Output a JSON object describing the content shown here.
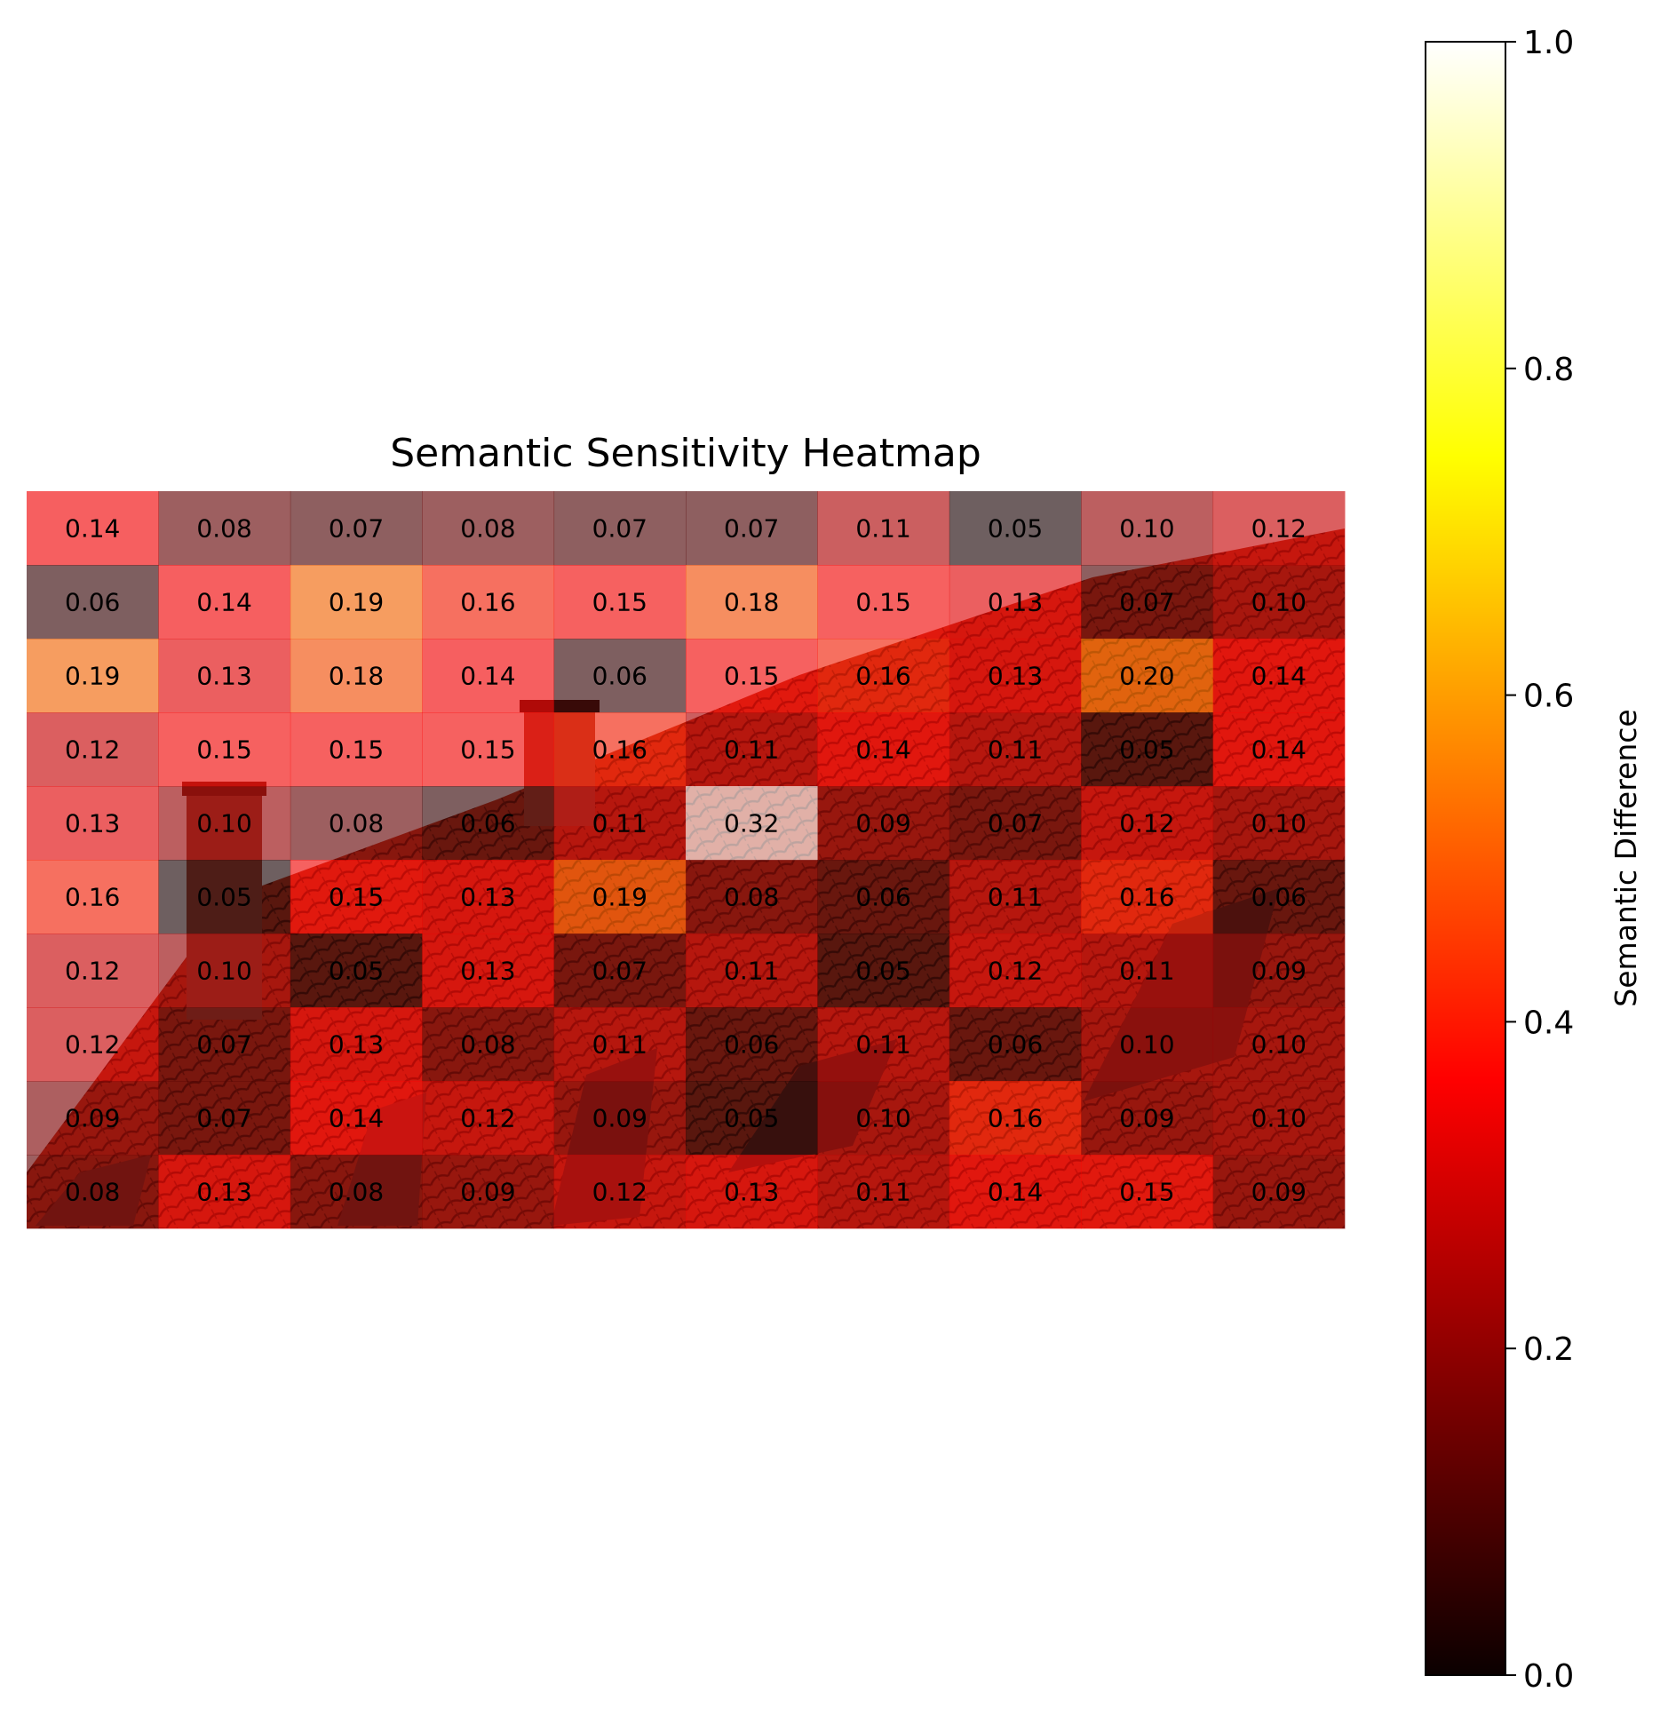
{
  "chart_data": {
    "type": "heatmap",
    "title": "Semantic Sensitivity Heatmap",
    "rows": 10,
    "cols": 10,
    "values": [
      [
        0.14,
        0.08,
        0.07,
        0.08,
        0.07,
        0.07,
        0.11,
        0.05,
        0.1,
        0.12
      ],
      [
        0.06,
        0.14,
        0.19,
        0.16,
        0.15,
        0.18,
        0.15,
        0.13,
        0.07,
        0.1
      ],
      [
        0.19,
        0.13,
        0.18,
        0.14,
        0.06,
        0.15,
        0.16,
        0.13,
        0.2,
        0.14
      ],
      [
        0.12,
        0.15,
        0.15,
        0.15,
        0.16,
        0.11,
        0.14,
        0.11,
        0.05,
        0.14
      ],
      [
        0.13,
        0.1,
        0.08,
        0.06,
        0.11,
        0.32,
        0.09,
        0.07,
        0.12,
        0.1
      ],
      [
        0.16,
        0.05,
        0.15,
        0.13,
        0.19,
        0.08,
        0.06,
        0.11,
        0.16,
        0.06
      ],
      [
        0.12,
        0.1,
        0.05,
        0.13,
        0.07,
        0.11,
        0.05,
        0.12,
        0.11,
        0.09
      ],
      [
        0.12,
        0.07,
        0.13,
        0.08,
        0.11,
        0.06,
        0.11,
        0.06,
        0.1,
        0.1
      ],
      [
        0.09,
        0.07,
        0.14,
        0.12,
        0.09,
        0.05,
        0.1,
        0.16,
        0.09,
        0.1
      ],
      [
        0.08,
        0.13,
        0.08,
        0.09,
        0.12,
        0.13,
        0.11,
        0.14,
        0.15,
        0.09
      ]
    ],
    "colormap": "hot",
    "colorbar": {
      "label": "Semantic Difference",
      "range": [
        0.0,
        1.0
      ],
      "ticks": [
        "0.0",
        "0.2",
        "0.4",
        "0.6",
        "0.8",
        "1.0"
      ]
    },
    "background_image": "red tiled roof with chimneys and skylights (overlaid beneath heatmap)"
  },
  "colors": {
    "roof": "#b83a25",
    "roof_dark": "#5a1a10",
    "sky": "#e8eef2"
  }
}
